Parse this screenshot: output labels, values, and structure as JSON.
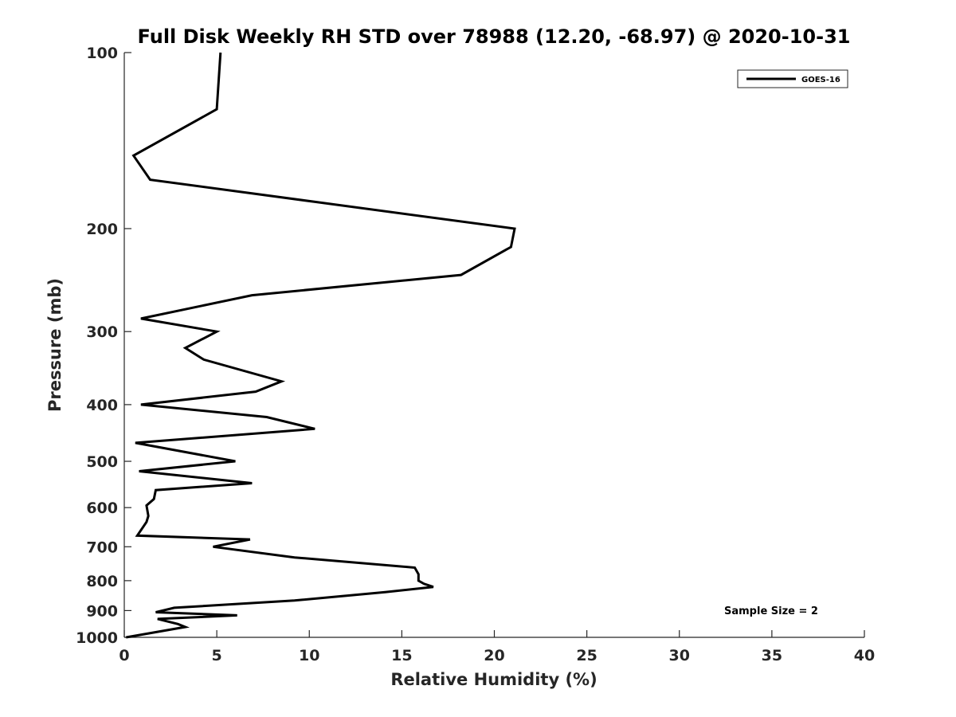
{
  "chart_data": {
    "type": "line",
    "title": "Full Disk Weekly RH STD over 78988 (12.20, -68.97) @ 2020-10-31",
    "xlabel": "Relative Humidity (%)",
    "ylabel": "Pressure (mb)",
    "xlim": [
      0,
      40
    ],
    "ylim": [
      100,
      1000
    ],
    "y_scale": "log",
    "y_reversed": true,
    "x_ticks": [
      "0",
      "5",
      "10",
      "15",
      "20",
      "25",
      "30",
      "35",
      "40"
    ],
    "y_ticks": [
      "100",
      "200",
      "300",
      "400",
      "500",
      "600",
      "700",
      "800",
      "900",
      "1000"
    ],
    "legend_position": "top-right",
    "grid": false,
    "annotation": "Sample Size = 2",
    "series": [
      {
        "name": "GOES-16",
        "color": "#000000",
        "x": [
          5.2,
          5.0,
          0.5,
          1.4,
          21.1,
          20.9,
          18.2,
          6.9,
          0.9,
          5.0,
          3.3,
          4.3,
          8.5,
          7.1,
          0.9,
          7.7,
          10.3,
          0.6,
          6.0,
          0.8,
          6.9,
          1.7,
          1.6,
          1.2,
          1.3,
          1.2,
          0.7,
          6.8,
          4.8,
          9.2,
          15.7,
          15.9,
          15.9,
          16.2,
          16.7,
          14.1,
          9.2,
          2.7,
          1.7,
          6.1,
          1.8,
          2.9,
          3.3,
          0.1
        ],
        "y": [
          100,
          125,
          150,
          165,
          200,
          215,
          240,
          260,
          285,
          300,
          320,
          335,
          365,
          380,
          400,
          420,
          440,
          465,
          500,
          520,
          545,
          560,
          580,
          595,
          620,
          635,
          670,
          680,
          700,
          730,
          760,
          780,
          800,
          810,
          820,
          837,
          865,
          890,
          906,
          917,
          930,
          949,
          960,
          1000
        ]
      }
    ]
  }
}
